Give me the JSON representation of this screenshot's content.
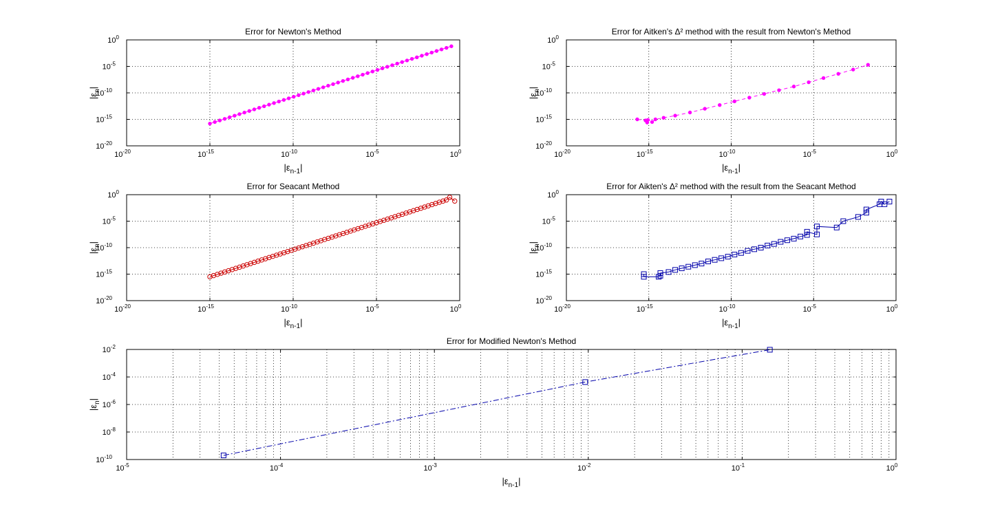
{
  "chart_data": [
    {
      "type": "line",
      "title": "Error for Newton's Method",
      "xlabel": "|εn-1|",
      "ylabel": "|εn|",
      "x_scale": "log",
      "y_scale": "log",
      "xlim": [
        "1e-20",
        "1e0"
      ],
      "ylim": [
        "1e-20",
        "1e0"
      ],
      "x_ticks": [
        {
          "base": "10",
          "exp": "-20"
        },
        {
          "base": "10",
          "exp": "-15"
        },
        {
          "base": "10",
          "exp": "-10"
        },
        {
          "base": "10",
          "exp": "-5"
        },
        {
          "base": "10",
          "exp": "0"
        }
      ],
      "y_ticks": [
        {
          "base": "10",
          "exp": "-20"
        },
        {
          "base": "10",
          "exp": "-15"
        },
        {
          "base": "10",
          "exp": "-10"
        },
        {
          "base": "10",
          "exp": "-5"
        },
        {
          "base": "10",
          "exp": "0"
        }
      ],
      "grid": "dotted",
      "series": [
        {
          "color": "#ff00ff",
          "marker": "dot",
          "line": "solid",
          "log10_x_start": -15.0,
          "log10_x_end": -0.5,
          "log10_y_start": -15.8,
          "log10_y_end": -1.2,
          "points": 50
        }
      ]
    },
    {
      "type": "line",
      "title": "Error for Aitken's Δ² method with the result from Newton's Method",
      "xlabel": "|εn-1|",
      "ylabel": "|εn|",
      "x_scale": "log",
      "y_scale": "log",
      "xlim": [
        "1e-20",
        "1e0"
      ],
      "ylim": [
        "1e-20",
        "1e0"
      ],
      "x_ticks": [
        {
          "base": "10",
          "exp": "-20"
        },
        {
          "base": "10",
          "exp": "-15"
        },
        {
          "base": "10",
          "exp": "-10"
        },
        {
          "base": "10",
          "exp": "-5"
        },
        {
          "base": "10",
          "exp": "0"
        }
      ],
      "y_ticks": [
        {
          "base": "10",
          "exp": "-20"
        },
        {
          "base": "10",
          "exp": "-15"
        },
        {
          "base": "10",
          "exp": "-10"
        },
        {
          "base": "10",
          "exp": "-5"
        },
        {
          "base": "10",
          "exp": "0"
        }
      ],
      "grid": "dotted",
      "series": [
        {
          "color": "#ff00ff",
          "marker": "dot",
          "line": "dashed",
          "log10_x": [
            -15.7,
            -15.2,
            -15.1,
            -15.05,
            -14.8,
            -14.6,
            -14.1,
            -13.4,
            -12.5,
            -11.6,
            -10.7,
            -9.8,
            -8.9,
            -8.0,
            -7.1,
            -6.2,
            -5.3,
            -4.4,
            -3.5,
            -2.6,
            -1.7
          ],
          "log10_y": [
            -15.0,
            -15.2,
            -15.6,
            -15.1,
            -15.5,
            -15.0,
            -14.7,
            -14.3,
            -13.7,
            -13.0,
            -12.3,
            -11.6,
            -10.9,
            -10.2,
            -9.5,
            -8.8,
            -8.0,
            -7.2,
            -6.4,
            -5.6,
            -4.7
          ]
        }
      ]
    },
    {
      "type": "line",
      "title": "Error for Seacant Method",
      "xlabel": "|εn-1|",
      "ylabel": "|εn|",
      "x_scale": "log",
      "y_scale": "log",
      "xlim": [
        "1e-20",
        "1e0"
      ],
      "ylim": [
        "1e-20",
        "1e0"
      ],
      "x_ticks": [
        {
          "base": "10",
          "exp": "-20"
        },
        {
          "base": "10",
          "exp": "-15"
        },
        {
          "base": "10",
          "exp": "-10"
        },
        {
          "base": "10",
          "exp": "-5"
        },
        {
          "base": "10",
          "exp": "0"
        }
      ],
      "y_ticks": [
        {
          "base": "10",
          "exp": "-20"
        },
        {
          "base": "10",
          "exp": "-15"
        },
        {
          "base": "10",
          "exp": "-10"
        },
        {
          "base": "10",
          "exp": "-5"
        },
        {
          "base": "10",
          "exp": "0"
        }
      ],
      "grid": "dotted",
      "series": [
        {
          "color": "#cc0000",
          "marker": "circle",
          "line": "solid",
          "log10_x_start": -15.0,
          "log10_x_end": -1.0,
          "log10_y_start": -15.5,
          "log10_y_end": -1.2,
          "points": 64,
          "extra_log10_x": [
            -0.8,
            -0.6,
            -0.3
          ],
          "extra_log10_y": [
            -1.0,
            -0.5,
            -1.2
          ]
        }
      ]
    },
    {
      "type": "line",
      "title": "Error for Aikten's Δ² method with the result from the Seacant Method",
      "xlabel": "|εn-1|",
      "ylabel": "|εn|",
      "x_scale": "log",
      "y_scale": "log",
      "xlim": [
        "1e-20",
        "1e0"
      ],
      "ylim": [
        "1e-20",
        "1e0"
      ],
      "x_ticks": [
        {
          "base": "10",
          "exp": "-20"
        },
        {
          "base": "10",
          "exp": "-15"
        },
        {
          "base": "10",
          "exp": "-10"
        },
        {
          "base": "10",
          "exp": "-5"
        },
        {
          "base": "10",
          "exp": "0"
        }
      ],
      "y_ticks": [
        {
          "base": "10",
          "exp": "-20"
        },
        {
          "base": "10",
          "exp": "-15"
        },
        {
          "base": "10",
          "exp": "-10"
        },
        {
          "base": "10",
          "exp": "-5"
        },
        {
          "base": "10",
          "exp": "0"
        }
      ],
      "grid": "dotted",
      "series": [
        {
          "color": "#0000aa",
          "marker": "square",
          "line": "solid",
          "log10_x": [
            -15.3,
            -15.3,
            -14.4,
            -14.3,
            -14.3,
            -13.8,
            -13.4,
            -13.0,
            -12.6,
            -12.2,
            -11.8,
            -11.4,
            -11.0,
            -10.6,
            -10.2,
            -9.8,
            -9.4,
            -9.0,
            -8.6,
            -8.2,
            -7.8,
            -7.4,
            -7.0,
            -6.6,
            -6.2,
            -5.8,
            -5.4,
            -5.4,
            -4.8,
            -4.8,
            -3.6,
            -3.2,
            -2.3,
            -1.8,
            -1.8,
            -1.0,
            -0.9,
            -0.7,
            -0.4
          ],
          "log10_y": [
            -15.0,
            -15.5,
            -15.5,
            -15.3,
            -14.8,
            -14.6,
            -14.2,
            -13.9,
            -13.6,
            -13.3,
            -13.0,
            -12.6,
            -12.3,
            -12.0,
            -11.7,
            -11.3,
            -11.0,
            -10.6,
            -10.3,
            -10.0,
            -9.6,
            -9.3,
            -8.9,
            -8.6,
            -8.3,
            -7.9,
            -7.6,
            -7.0,
            -7.5,
            -6.0,
            -6.2,
            -5.0,
            -4.2,
            -3.4,
            -2.8,
            -1.8,
            -1.3,
            -1.8,
            -1.3
          ]
        }
      ]
    },
    {
      "type": "line",
      "title": "Error for Modified Newton's Method",
      "xlabel": "|εn-1|",
      "ylabel": "|εn|",
      "x_scale": "log",
      "y_scale": "log",
      "xlim": [
        "1e-5",
        "1e0"
      ],
      "ylim": [
        "1e-10",
        "1e-2"
      ],
      "x_ticks": [
        {
          "base": "10",
          "exp": "-5"
        },
        {
          "base": "10",
          "exp": "-4"
        },
        {
          "base": "10",
          "exp": "-3"
        },
        {
          "base": "10",
          "exp": "-2"
        },
        {
          "base": "10",
          "exp": "-1"
        },
        {
          "base": "10",
          "exp": "0"
        }
      ],
      "y_ticks": [
        {
          "base": "10",
          "exp": "-10"
        },
        {
          "base": "10",
          "exp": "-8"
        },
        {
          "base": "10",
          "exp": "-6"
        },
        {
          "base": "10",
          "exp": "-4"
        },
        {
          "base": "10",
          "exp": "-2"
        }
      ],
      "grid": "dotted",
      "series": [
        {
          "color": "#0000aa",
          "marker": "square",
          "line": "dashdot",
          "log10_x": [
            -4.37,
            -2.02,
            -0.82
          ],
          "log10_y": [
            -9.7,
            -4.37,
            -2.02
          ]
        }
      ]
    }
  ]
}
